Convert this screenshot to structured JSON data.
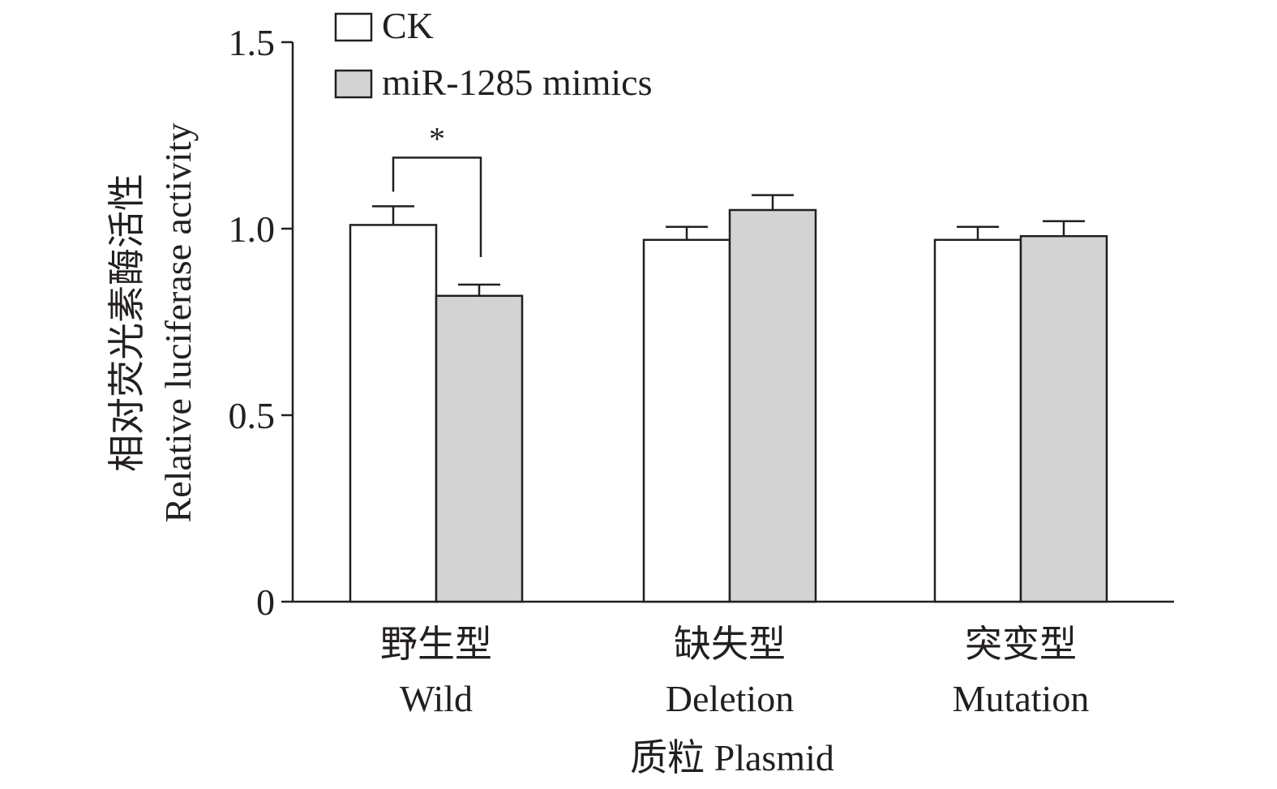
{
  "chart_data": {
    "type": "bar",
    "categories": [
      "野生型",
      "缺失型",
      "突变型"
    ],
    "categories_en": [
      "Wild",
      "Deletion",
      "Mutation"
    ],
    "series": [
      {
        "name": "CK",
        "values": [
          1.01,
          0.97,
          0.97
        ],
        "errors": [
          0.05,
          0.035,
          0.035
        ],
        "color": "#ffffff"
      },
      {
        "name": "miR-1285 mimics",
        "values": [
          0.82,
          1.05,
          0.98
        ],
        "errors": [
          0.03,
          0.04,
          0.04
        ],
        "color": "#d3d3d3"
      }
    ],
    "ylabel_cn": "相对荧光素酶活性",
    "ylabel_en": "Relative luciferase activity",
    "xlabel": "质粒 Plasmid",
    "ylim": [
      0,
      1.5
    ],
    "yticks": [
      {
        "value": 0,
        "label": "0"
      },
      {
        "value": 0.5,
        "label": "0.5"
      },
      {
        "value": 1.0,
        "label": "1.0"
      },
      {
        "value": 1.5,
        "label": "1.5"
      }
    ],
    "significance": [
      {
        "category_index": 0,
        "label": "*"
      }
    ],
    "grid": false,
    "legend_position": "top-left"
  }
}
